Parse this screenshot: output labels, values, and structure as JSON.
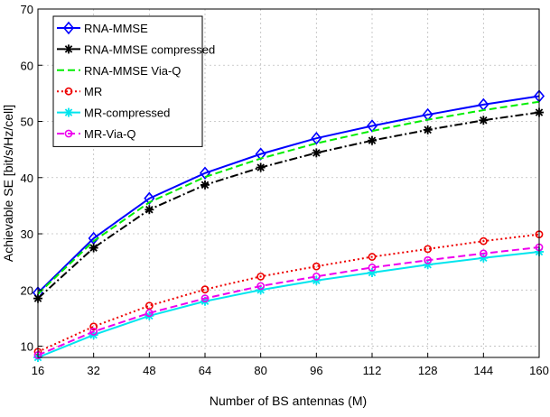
{
  "chart_data": {
    "type": "line",
    "title": "",
    "xlabel": "Number of BS antennas (M)",
    "ylabel": "Achievable SE [bit/s/Hz/cell]",
    "x": [
      16,
      32,
      48,
      64,
      80,
      96,
      112,
      128,
      144,
      160
    ],
    "xlim": [
      16,
      160
    ],
    "ylim": [
      8,
      70
    ],
    "xticks": [
      "16",
      "32",
      "48",
      "64",
      "80",
      "96",
      "112",
      "128",
      "144",
      "160"
    ],
    "yticks": [
      "10",
      "20",
      "30",
      "40",
      "50",
      "60",
      "70"
    ],
    "grid": true,
    "legend_position": "top-left",
    "series": [
      {
        "name": "RNA-MMSE",
        "color": "#0000ff",
        "dash": "solid",
        "marker": "diamond",
        "values": [
          19.5,
          29.2,
          36.3,
          40.8,
          44.2,
          47.0,
          49.2,
          51.2,
          53.0,
          54.5
        ]
      },
      {
        "name": "RNA-MMSE compressed",
        "color": "#000000",
        "dash": "dashdot",
        "marker": "star",
        "values": [
          18.5,
          27.5,
          34.3,
          38.7,
          41.8,
          44.4,
          46.6,
          48.5,
          50.2,
          51.6
        ]
      },
      {
        "name": "RNA-MMSE Via-Q",
        "color": "#00ee00",
        "dash": "dashed",
        "marker": "none",
        "values": [
          19.3,
          28.7,
          35.6,
          40.1,
          43.4,
          46.1,
          48.3,
          50.3,
          52.0,
          53.5
        ]
      },
      {
        "name": "MR",
        "color": "#ee0000",
        "dash": "dotted",
        "marker": "circle",
        "values": [
          9.0,
          13.5,
          17.2,
          20.1,
          22.4,
          24.2,
          25.9,
          27.3,
          28.7,
          29.9
        ]
      },
      {
        "name": "MR-compressed",
        "color": "#00e5ee",
        "dash": "solid",
        "marker": "star",
        "values": [
          8.0,
          12.0,
          15.4,
          18.0,
          20.0,
          21.7,
          23.1,
          24.5,
          25.7,
          26.8
        ]
      },
      {
        "name": "MR-Via-Q",
        "color": "#ee00ee",
        "dash": "dashed",
        "marker": "circle",
        "values": [
          8.4,
          12.6,
          15.9,
          18.5,
          20.7,
          22.4,
          24.0,
          25.3,
          26.5,
          27.6
        ]
      }
    ]
  }
}
